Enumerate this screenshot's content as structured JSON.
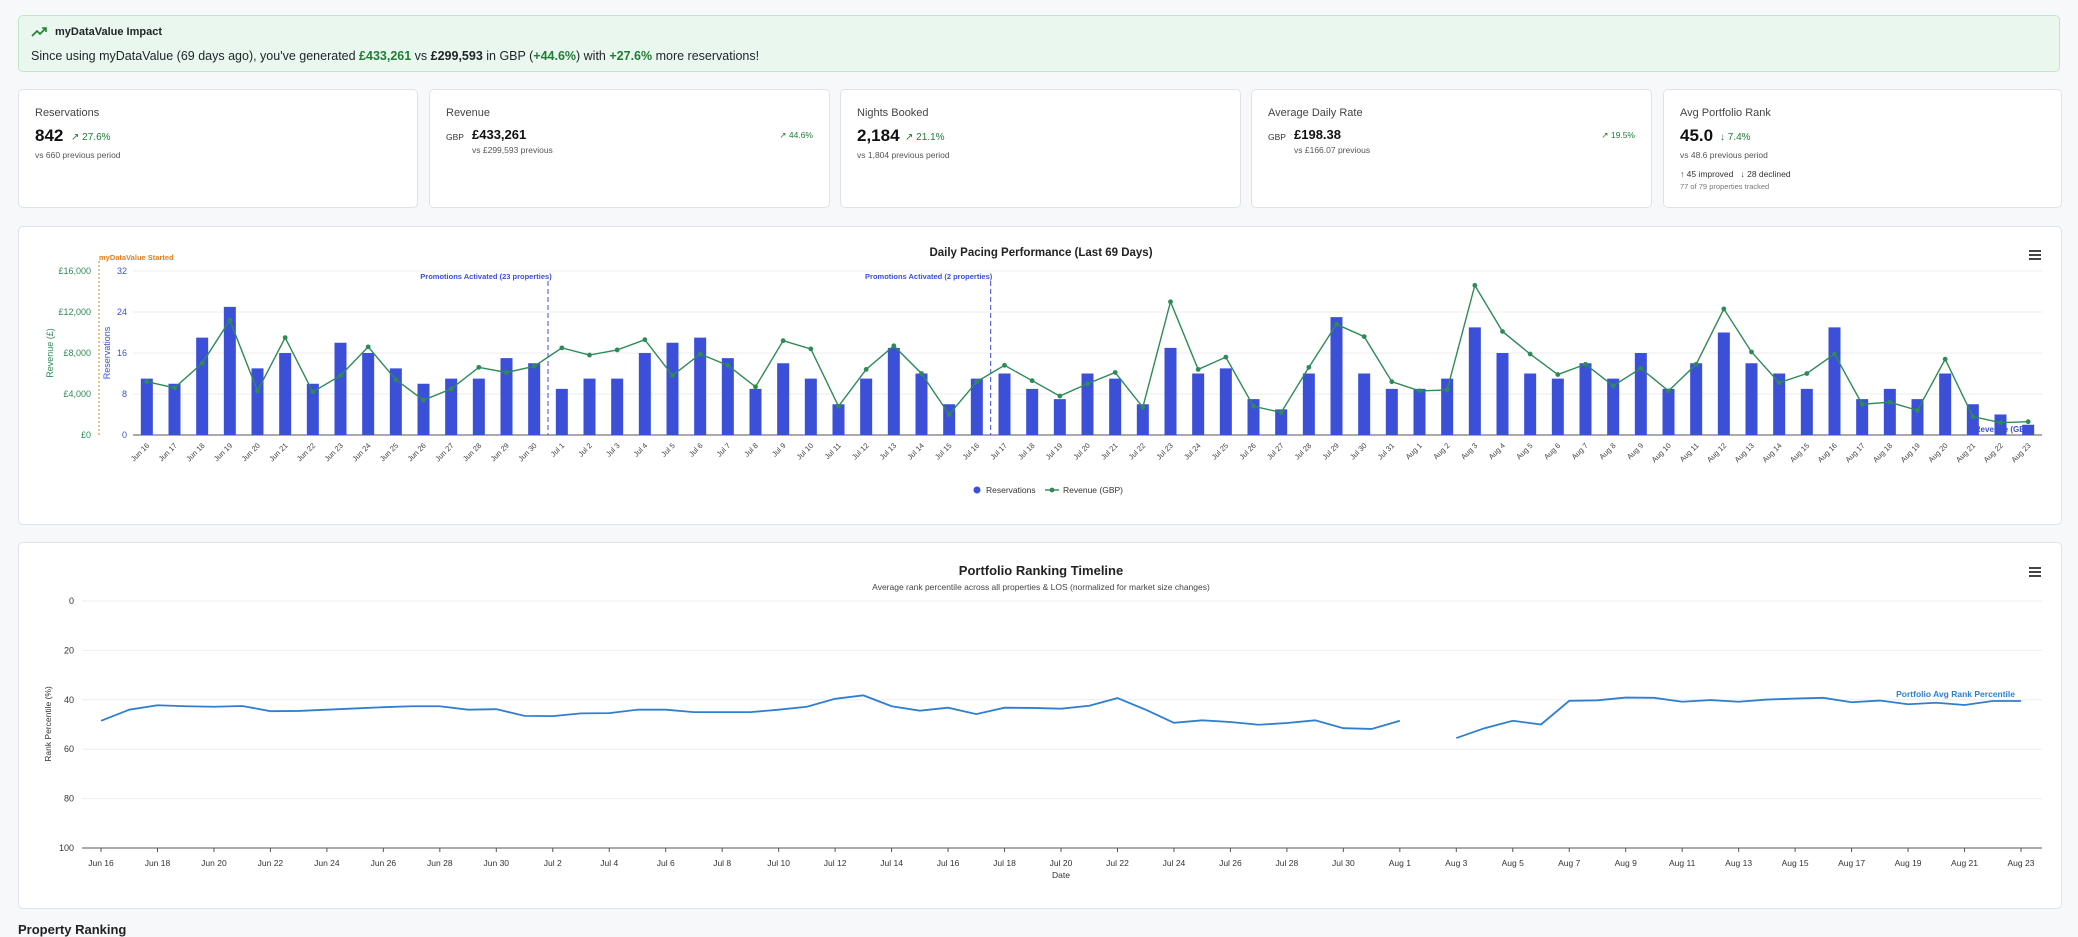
{
  "banner": {
    "title": "myDataValue Impact",
    "text_parts": [
      {
        "t": "Since using myDataValue (69 days ago), you've generated ",
        "s": "n"
      },
      {
        "t": "£433,261",
        "s": "g"
      },
      {
        "t": " vs ",
        "s": "n"
      },
      {
        "t": "£299,593",
        "s": "b"
      },
      {
        "t": " in GBP (",
        "s": "n"
      },
      {
        "t": "+44.6%",
        "s": "g"
      },
      {
        "t": ") with ",
        "s": "n"
      },
      {
        "t": "+27.6%",
        "s": "g"
      },
      {
        "t": " more reservations!",
        "s": "n"
      }
    ]
  },
  "cards": {
    "reservations": {
      "label": "Reservations",
      "value": "842",
      "change": "27.6%",
      "prev": "vs 660 previous period"
    },
    "revenue": {
      "label": "Revenue",
      "currency": "GBP",
      "value": "£433,261",
      "change": "44.6%",
      "prev": "vs £299,593 previous"
    },
    "nights": {
      "label": "Nights Booked",
      "value": "2,184",
      "change": "21.1%",
      "prev": "vs 1,804 previous period"
    },
    "adr": {
      "label": "Average Daily Rate",
      "currency": "GBP",
      "value": "£198.38",
      "change": "19.5%",
      "prev": "vs £166.07 previous"
    },
    "rank": {
      "label": "Avg Portfolio Rank",
      "value": "45.0",
      "change": "7.4%",
      "prev": "vs 48.6 previous period",
      "improved": "↑ 45 improved",
      "declined": "↓ 28 declined",
      "tracked": "77 of 79 properties tracked"
    }
  },
  "colors": {
    "reservations": "#3b4fd8",
    "revenue": "#2e8b57",
    "rank": "#2f7fd0",
    "start": "#e0801a",
    "promo": "#3b4fd8"
  },
  "chart_data": [
    {
      "type": "bar",
      "title": "Daily Pacing Performance (Last 69 Days)",
      "categories": [
        "Jun 16",
        "Jun 17",
        "Jun 18",
        "Jun 19",
        "Jun 20",
        "Jun 21",
        "Jun 22",
        "Jun 23",
        "Jun 24",
        "Jun 25",
        "Jun 26",
        "Jun 27",
        "Jun 28",
        "Jun 29",
        "Jun 30",
        "Jul 1",
        "Jul 2",
        "Jul 3",
        "Jul 4",
        "Jul 5",
        "Jul 6",
        "Jul 7",
        "Jul 8",
        "Jul 9",
        "Jul 10",
        "Jul 11",
        "Jul 12",
        "Jul 13",
        "Jul 14",
        "Jul 15",
        "Jul 16",
        "Jul 17",
        "Jul 18",
        "Jul 19",
        "Jul 20",
        "Jul 21",
        "Jul 22",
        "Jul 23",
        "Jul 24",
        "Jul 25",
        "Jul 26",
        "Jul 27",
        "Jul 28",
        "Jul 29",
        "Jul 30",
        "Jul 31",
        "Aug 1",
        "Aug 2",
        "Aug 3",
        "Aug 4",
        "Aug 5",
        "Aug 6",
        "Aug 7",
        "Aug 8",
        "Aug 9",
        "Aug 10",
        "Aug 11",
        "Aug 12",
        "Aug 13",
        "Aug 14",
        "Aug 15",
        "Aug 16",
        "Aug 17",
        "Aug 18",
        "Aug 19",
        "Aug 20",
        "Aug 21",
        "Aug 22",
        "Aug 23"
      ],
      "series": [
        {
          "name": "Reservations",
          "kind": "bar",
          "axis": "right",
          "values": [
            11,
            10,
            19,
            25,
            13,
            16,
            10,
            18,
            16,
            13,
            10,
            11,
            11,
            15,
            14,
            9,
            11,
            11,
            16,
            18,
            19,
            15,
            9,
            14,
            11,
            6,
            11,
            17,
            12,
            6,
            11,
            12,
            9,
            7,
            12,
            11,
            6,
            17,
            12,
            13,
            7,
            5,
            12,
            23,
            12,
            9,
            9,
            11,
            21,
            16,
            12,
            11,
            14,
            11,
            16,
            9,
            14,
            20,
            14,
            12,
            9,
            21,
            7,
            9,
            7,
            12,
            6,
            4,
            2
          ]
        },
        {
          "name": "Revenue (GBP)",
          "kind": "line",
          "axis": "left",
          "values": [
            5200,
            4600,
            7000,
            11200,
            4300,
            9500,
            4200,
            5800,
            8600,
            5400,
            3400,
            4500,
            6600,
            6100,
            6700,
            8500,
            7800,
            8300,
            9300,
            5800,
            7900,
            6800,
            4700,
            9200,
            8400,
            2800,
            6400,
            8700,
            6000,
            2000,
            5200,
            6800,
            5300,
            3800,
            5000,
            6100,
            2700,
            13000,
            6400,
            7600,
            2800,
            2200,
            6600,
            10800,
            9600,
            5200,
            4300,
            4400,
            14600,
            10100,
            7900,
            5900,
            6900,
            4800,
            6500,
            4300,
            6900,
            12300,
            8100,
            5100,
            6000,
            7900,
            3000,
            3200,
            2400,
            7400,
            1800,
            1200,
            1300
          ]
        }
      ],
      "ylabel_left": "Revenue (£)",
      "ylabel_right": "Reservations",
      "y_left": {
        "min": 0,
        "max": 16000,
        "ticks": [
          "£0",
          "£4,000",
          "£8,000",
          "£12,000",
          "£16,000"
        ]
      },
      "y_right": {
        "min": 0,
        "max": 32,
        "ticks": [
          "0",
          "8",
          "16",
          "24",
          "32"
        ]
      },
      "annotations": [
        {
          "index": 0,
          "text": "myDataValue Started"
        },
        {
          "index": 14.5,
          "text": "Promotions Activated (23 properties)"
        },
        {
          "index": 30.5,
          "text": "Promotions Activated (2 properties)"
        }
      ],
      "end_label": "Revenue (GBP)",
      "legend": [
        "Reservations",
        "Revenue (GBP)"
      ],
      "legend_position": "bottom"
    },
    {
      "type": "line",
      "title": "Portfolio Ranking Timeline",
      "subtitle": "Average rank percentile across all properties & LOS (normalized for market size changes)",
      "xlabel": "Date",
      "ylabel": "Rank Percentile (%)",
      "y": {
        "min": 0,
        "max": 100,
        "reversed": true,
        "ticks": [
          "0",
          "20",
          "40",
          "60",
          "80",
          "100"
        ]
      },
      "x_ticks": [
        "Jun 16",
        "Jun 18",
        "Jun 20",
        "Jun 22",
        "Jun 24",
        "Jun 26",
        "Jun 28",
        "Jun 30",
        "Jul 2",
        "Jul 4",
        "Jul 6",
        "Jul 8",
        "Jul 10",
        "Jul 12",
        "Jul 14",
        "Jul 16",
        "Jul 18",
        "Jul 20",
        "Jul 22",
        "Jul 24",
        "Jul 26",
        "Jul 28",
        "Jul 30",
        "Aug 1",
        "Aug 3",
        "Aug 5",
        "Aug 7",
        "Aug 9",
        "Aug 11",
        "Aug 13",
        "Aug 15",
        "Aug 17",
        "Aug 19",
        "Aug 21",
        "Aug 23"
      ],
      "series_name": "Portfolio Avg Rank Percentile",
      "values": [
        48.5,
        44,
        42.2,
        42.6,
        42.8,
        42.5,
        44.6,
        44.5,
        44,
        43.5,
        43,
        42.6,
        42.6,
        44,
        43.8,
        46.5,
        46.6,
        45.5,
        45.4,
        44,
        44,
        45,
        45,
        45,
        44,
        42.8,
        39.6,
        38.2,
        42.6,
        44.4,
        43.2,
        45.8,
        43.2,
        43.3,
        43.6,
        42.4,
        39.3,
        44,
        49.3,
        48.3,
        49,
        50.1,
        49.4,
        48.3,
        51.5,
        51.8,
        48.5,
        null,
        55.5,
        51.5,
        48.5,
        50,
        40.4,
        40.2,
        39.1,
        39.2,
        40.8,
        40.1,
        40.8,
        39.9,
        39.5,
        39.2,
        41,
        40.3,
        41.8,
        41.2,
        42.1,
        40.5,
        40.5
      ]
    }
  ],
  "footer": {
    "title": "Property Ranking"
  }
}
